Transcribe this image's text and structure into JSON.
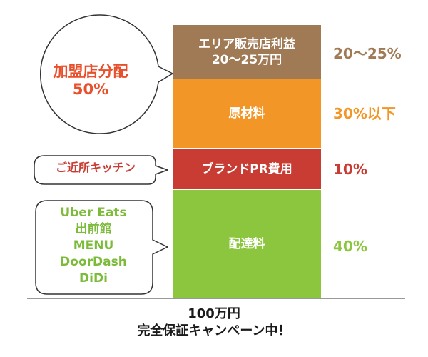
{
  "colors": {
    "area_profit": "#a07a54",
    "material": "#f29727",
    "brand": "#c83c33",
    "delivery": "#8cc63f",
    "franchise_text": "#e8502c",
    "kitchen_text": "#c83c33",
    "platform_text": "#7cbb3a"
  },
  "bar": {
    "segments": [
      {
        "label": "エリア販売店利益\n20～25万円",
        "percent": "20～25%"
      },
      {
        "label": "原材料",
        "percent": "30%以下"
      },
      {
        "label": "ブランドPR費用",
        "percent": "10%"
      },
      {
        "label": "配達料",
        "percent": "40%"
      }
    ]
  },
  "callouts": {
    "franchise": "加盟店分配\n50%",
    "kitchen": "ご近所キッチン",
    "platforms": "Uber Eats\n出前館\nMENU\nDoorDash\nDiDi"
  },
  "footer": {
    "line1": "100万円",
    "line2": "完全保証キャンペーン中！"
  }
}
